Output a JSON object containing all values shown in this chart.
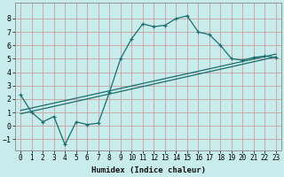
{
  "title": "",
  "xlabel": "Humidex (Indice chaleur)",
  "ylabel": "",
  "bg_color": "#c8ecec",
  "grid_color": "#c8a0a0",
  "line_color": "#1a6e6e",
  "xlim": [
    -0.5,
    23.5
  ],
  "ylim": [
    -1.8,
    9.2
  ],
  "xticks": [
    0,
    1,
    2,
    3,
    4,
    5,
    6,
    7,
    8,
    9,
    10,
    11,
    12,
    13,
    14,
    15,
    16,
    17,
    18,
    19,
    20,
    21,
    22,
    23
  ],
  "yticks": [
    -1,
    0,
    1,
    2,
    3,
    4,
    5,
    6,
    7,
    8
  ],
  "line1_x": [
    0,
    1,
    2,
    3,
    4,
    5,
    6,
    7,
    8,
    9,
    10,
    11,
    12,
    13,
    14,
    15,
    16,
    17,
    18,
    19,
    20,
    21,
    22,
    23
  ],
  "line1_y": [
    2.3,
    1.0,
    0.3,
    0.7,
    -1.4,
    0.3,
    0.1,
    0.2,
    2.5,
    5.0,
    6.5,
    7.6,
    7.4,
    7.5,
    8.0,
    8.2,
    7.0,
    6.8,
    6.0,
    5.0,
    4.9,
    5.1,
    5.2,
    5.1
  ],
  "line2_x": [
    0,
    23
  ],
  "line2_y": [
    0.9,
    5.15
  ],
  "line3_x": [
    0,
    23
  ],
  "line3_y": [
    1.15,
    5.35
  ],
  "xlabel_fontsize": 6.5,
  "tick_fontsize": 5.5
}
